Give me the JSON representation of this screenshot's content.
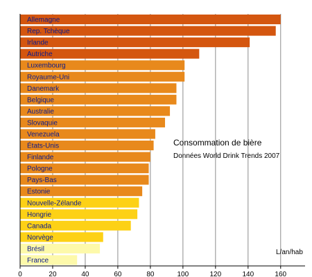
{
  "chart_data": {
    "type": "bar",
    "orientation": "horizontal",
    "title": "Consommation de bière",
    "subtitle": "Données World Drink Trends 2007",
    "unit": "L/an/hab",
    "categories": [
      "Allemagne",
      "Rep. Tchèque",
      "Irlande",
      "Autriche",
      "Luxembourg",
      "Royaume-Uni",
      "Danemark",
      "Belgique",
      "Australie",
      "Slovaquie",
      "Venezuela",
      "États-Unis",
      "Finlande",
      "Pologne",
      "Pays-Bas",
      "Estonie",
      "Nouvelle-Zélande",
      "Hongrie",
      "Canada",
      "Norvège",
      "Brésil",
      "France"
    ],
    "values": [
      160,
      157,
      141,
      110,
      101,
      101,
      96,
      96,
      92,
      89,
      83,
      82,
      80,
      79,
      79,
      75,
      73,
      72,
      68,
      51,
      49,
      35
    ],
    "colors": [
      "#d4560f",
      "#d4560f",
      "#d4560f",
      "#d4560f",
      "#e8891c",
      "#e8891c",
      "#e8891c",
      "#e8891c",
      "#e8891c",
      "#e8891c",
      "#e8891c",
      "#e8891c",
      "#e8891c",
      "#e8891c",
      "#e8891c",
      "#e8891c",
      "#fdd116",
      "#fdd116",
      "#fdd116",
      "#fdd116",
      "#fdf9aa",
      "#fdf9aa"
    ],
    "x_ticks": [
      0,
      20,
      40,
      60,
      80,
      100,
      120,
      140,
      160
    ],
    "xlim": [
      0,
      175
    ],
    "grid": true,
    "label_color": "#0c1a8c",
    "grid_color": "#8c8c8c"
  }
}
